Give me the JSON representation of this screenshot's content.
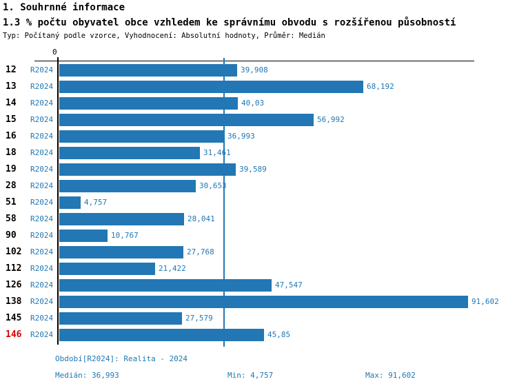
{
  "title": "1. Souhrnné informace",
  "subtitle": "1.3 % počtu obyvatel obce vzhledem ke správnímu obvodu s rozšířenou působností",
  "meta": "Typ: Počítaný podle vzorce, Vyhodnocení: Absolutní hodnoty, Průměr: Medián",
  "colors": {
    "bar": "#2277b4",
    "blue_text": "#1f77b4",
    "median_line": "#2277b4",
    "highlight_red": "#dd0000",
    "axis_black": "#000000"
  },
  "axis": {
    "zero_label": "0"
  },
  "chart_data": {
    "type": "bar",
    "orientation": "horizontal",
    "title": "1.3 % počtu obyvatel obce vzhledem ke správnímu obvodu s rozšířenou působností",
    "series_label": "R2024",
    "categories": [
      "12",
      "13",
      "14",
      "15",
      "16",
      "18",
      "19",
      "28",
      "51",
      "58",
      "90",
      "102",
      "112",
      "126",
      "138",
      "145",
      "146"
    ],
    "values": [
      39.908,
      68.192,
      40.03,
      56.992,
      36.993,
      31.461,
      39.589,
      30.653,
      4.757,
      28.041,
      10.767,
      27.768,
      21.422,
      47.547,
      91.602,
      27.579,
      45.85
    ],
    "value_labels": [
      "39,908",
      "68,192",
      "40,03",
      "56,992",
      "36,993",
      "31,461",
      "39,589",
      "30,653",
      "4,757",
      "28,041",
      "10,767",
      "27,768",
      "21,422",
      "47,547",
      "91,602",
      "27,579",
      "45,85"
    ],
    "highlighted_category": "146",
    "median_value": 36.993,
    "min_value": 4.757,
    "max_value": 91.602,
    "xlim": [
      0,
      100
    ],
    "grid": false,
    "legend": false
  },
  "footer": {
    "period": "Období[R2024]: Realita - 2024",
    "median": "Medián: 36,993",
    "min": "Min: 4,757",
    "max": "Max: 91,602"
  }
}
